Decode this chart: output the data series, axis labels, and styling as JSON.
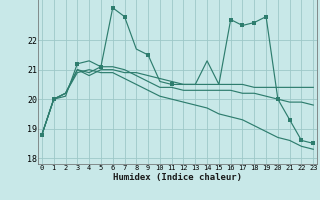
{
  "xlabel": "Humidex (Indice chaleur)",
  "background_color": "#c8e8e8",
  "line_color": "#2e7d6e",
  "grid_color": "#9ec8c8",
  "xlim": [
    -0.3,
    23.3
  ],
  "ylim": [
    17.8,
    23.5
  ],
  "yticks": [
    18,
    19,
    20,
    21,
    22
  ],
  "xticks": [
    0,
    1,
    2,
    3,
    4,
    5,
    6,
    7,
    8,
    9,
    10,
    11,
    12,
    13,
    14,
    15,
    16,
    17,
    18,
    19,
    20,
    21,
    22,
    23
  ],
  "series": [
    [
      18.8,
      20.0,
      20.1,
      21.2,
      21.3,
      21.1,
      23.1,
      22.8,
      21.7,
      21.5,
      20.6,
      20.5,
      20.5,
      20.5,
      21.3,
      20.5,
      22.7,
      22.5,
      22.6,
      22.8,
      20.0,
      19.3,
      18.6,
      18.5
    ],
    [
      18.8,
      20.0,
      20.2,
      21.0,
      20.8,
      21.0,
      21.0,
      20.9,
      20.9,
      20.8,
      20.7,
      20.6,
      20.5,
      20.5,
      20.5,
      20.5,
      20.5,
      20.5,
      20.4,
      20.4,
      20.4,
      20.4,
      20.4,
      20.4
    ],
    [
      18.8,
      20.0,
      20.2,
      21.0,
      20.9,
      21.1,
      21.1,
      21.0,
      20.8,
      20.6,
      20.4,
      20.4,
      20.3,
      20.3,
      20.3,
      20.3,
      20.3,
      20.2,
      20.2,
      20.1,
      20.0,
      19.9,
      19.9,
      19.8
    ],
    [
      18.8,
      20.0,
      20.2,
      20.9,
      21.0,
      20.9,
      20.9,
      20.7,
      20.5,
      20.3,
      20.1,
      20.0,
      19.9,
      19.8,
      19.7,
      19.5,
      19.4,
      19.3,
      19.1,
      18.9,
      18.7,
      18.6,
      18.4,
      18.3
    ]
  ],
  "markers": [
    true,
    true,
    false,
    true,
    false,
    true,
    true,
    true,
    false,
    true,
    false,
    true,
    false,
    false,
    false,
    false,
    true,
    true,
    true,
    true,
    true,
    true,
    true,
    true
  ]
}
